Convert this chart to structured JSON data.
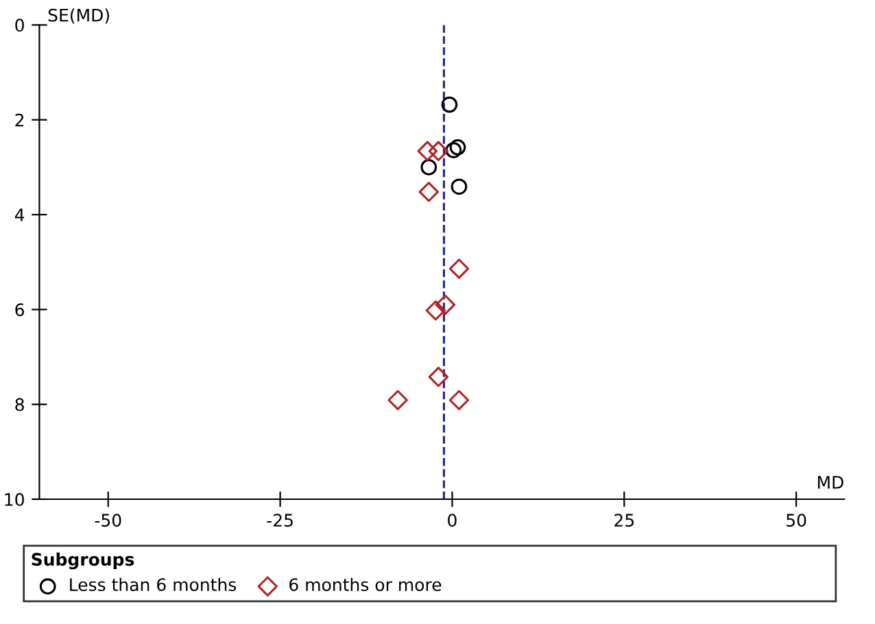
{
  "chart_data": {
    "type": "scatter",
    "xlabel": "MD",
    "ylabel": "SE(MD)",
    "legend_title": "Subgroups",
    "legend": "bottom",
    "grid": false,
    "xlim": [
      -60,
      57
    ],
    "ylim": [
      10,
      0
    ],
    "xticks": [
      -50,
      -25,
      0,
      25,
      50
    ],
    "yticks": [
      0,
      2,
      4,
      6,
      8,
      10
    ],
    "ref_lines": [
      {
        "axis": "x",
        "value": -1.2,
        "color": "#1f1f8f",
        "line_style": "dashed"
      }
    ],
    "series": [
      {
        "name": "Less than 6 months",
        "color": "#000000",
        "marker": "circle",
        "x": [
          -0.4,
          0.8,
          0.2,
          -3.4,
          1.0
        ],
        "values": [
          1.68,
          2.58,
          2.64,
          3.0,
          3.41
        ]
      },
      {
        "name": "6 months or more",
        "color": "#b22222",
        "marker": "diamond",
        "x": [
          -3.6,
          -2.0,
          -3.4,
          1.0,
          -1.0,
          -2.4,
          -2.0,
          -7.9,
          1.0
        ],
        "values": [
          2.66,
          2.66,
          3.52,
          5.14,
          5.9,
          6.02,
          7.42,
          7.91,
          7.91
        ]
      }
    ]
  }
}
